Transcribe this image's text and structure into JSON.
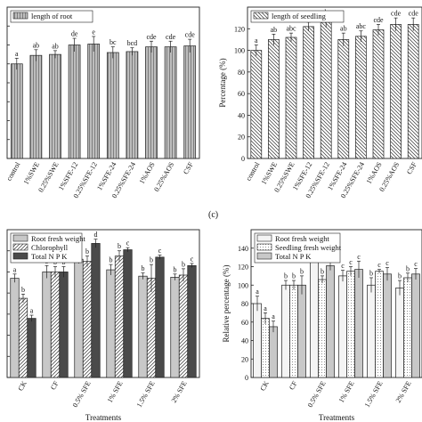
{
  "panel_tag": "(c)",
  "chart_data": [
    {
      "type": "bar",
      "ylabel": "",
      "xlabel": "",
      "ylim": [
        0,
        160
      ],
      "categories": [
        "control",
        "1%SWE",
        "0.25%SWE",
        "1%SFE-12",
        "0.25%SFE-12",
        "1%SFE-24",
        "0.25%SFE-24",
        "1%AOS",
        "0.25%AOS",
        "CSF"
      ],
      "series": [
        {
          "name": "length of root",
          "pattern": "vlines",
          "values": [
            100,
            109,
            110,
            120,
            121,
            112,
            113,
            118,
            118,
            119
          ],
          "errors": [
            6,
            6,
            4,
            7,
            8,
            6,
            4,
            6,
            6,
            7
          ],
          "labels": [
            "a",
            "ab",
            "ab",
            "de",
            "e",
            "bc",
            "bcd",
            "cde",
            "cde",
            "cde"
          ]
        }
      ]
    },
    {
      "type": "bar",
      "ylabel": "Percentage (%)",
      "xlabel": "",
      "ylim": [
        0,
        140
      ],
      "yticks": [
        0,
        20,
        40,
        60,
        80,
        100,
        120
      ],
      "categories": [
        "control",
        "1%SWE",
        "0.25%SWE",
        "1%SFE-12",
        "0.25%SFE-12",
        "1%SFE-24",
        "0.25%SFE-24",
        "1%AOS",
        "0.25%AOS",
        "CSF"
      ],
      "series": [
        {
          "name": "length of seedling",
          "pattern": "diag-back",
          "values": [
            100,
            110,
            112,
            122,
            126,
            110,
            113,
            119,
            124,
            124
          ],
          "errors": [
            5,
            5,
            4,
            4,
            5,
            6,
            5,
            5,
            6,
            6
          ],
          "labels": [
            "a",
            "ab",
            "abc",
            "bcd",
            "de",
            "ab",
            "abc",
            "cde",
            "cde",
            "cde"
          ]
        }
      ]
    },
    {
      "type": "bar",
      "ylabel": "",
      "xlabel": "Treatments",
      "ylim": [
        0,
        140
      ],
      "categories": [
        "CK",
        "CF",
        "0.5% SFE",
        "1% SFE",
        "1.5% SFE",
        "2% SFE"
      ],
      "series": [
        {
          "name": "Root fresh weight",
          "pattern": "light",
          "values": [
            94,
            100,
            112,
            102,
            96,
            95
          ],
          "errors": [
            4,
            6,
            4,
            5,
            3,
            3
          ],
          "labels": [
            "a",
            "b",
            "c",
            "b",
            "b",
            "b"
          ]
        },
        {
          "name": "Chlorophyll",
          "pattern": "diag-fwd",
          "values": [
            75,
            100,
            110,
            115,
            94,
            97
          ],
          "errors": [
            4,
            5,
            5,
            5,
            13,
            6
          ],
          "labels": [
            "b",
            "b",
            "b",
            "b",
            "b",
            "b"
          ]
        },
        {
          "name": "Total N P K",
          "pattern": "dark",
          "values": [
            56,
            100,
            127,
            121,
            114,
            106
          ],
          "errors": [
            3,
            5,
            4,
            2,
            2,
            2
          ],
          "labels": [
            "a",
            "b",
            "d",
            "c",
            "c",
            "c"
          ]
        }
      ]
    },
    {
      "type": "bar",
      "ylabel": "Relative percentage (%)",
      "xlabel": "Treatments",
      "ylim": [
        0,
        160
      ],
      "yticks": [
        0,
        20,
        40,
        60,
        80,
        100,
        120,
        140
      ],
      "categories": [
        "CK",
        "CF",
        "0.5% SFE",
        "1% SFE",
        "1.5% SFE",
        "2% SFE"
      ],
      "series": [
        {
          "name": "Root fresh weight",
          "pattern": "white",
          "values": [
            80,
            100,
            134,
            110,
            100,
            97
          ],
          "errors": [
            8,
            5,
            6,
            6,
            8,
            8
          ],
          "labels": [
            "a",
            "b",
            "d",
            "c",
            "b",
            "b"
          ]
        },
        {
          "name": "Seedling fresh weight",
          "pattern": "dots",
          "values": [
            64,
            100,
            106,
            115,
            115,
            108
          ],
          "errors": [
            6,
            5,
            4,
            5,
            2,
            5
          ],
          "labels": [
            "a",
            "b",
            "b",
            "c",
            "c",
            "b"
          ]
        },
        {
          "name": "Total N P K",
          "pattern": "light",
          "values": [
            55,
            100,
            121,
            117,
            112,
            112
          ],
          "errors": [
            6,
            10,
            5,
            9,
            7,
            6
          ],
          "labels": [
            "a",
            "b",
            "c",
            "c",
            "c",
            "c"
          ]
        }
      ]
    }
  ]
}
